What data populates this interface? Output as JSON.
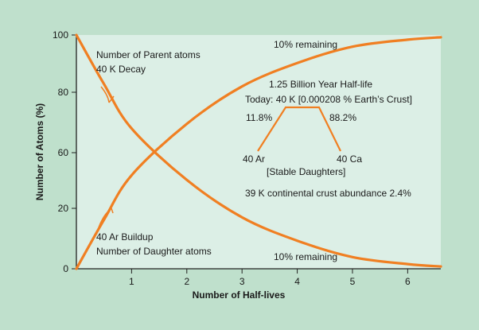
{
  "colors": {
    "background": "#bfe0cc",
    "plot_area": "#dcefe6",
    "curve": "#f07f22",
    "axis": "#222222"
  },
  "chart_data": {
    "type": "line",
    "title": "",
    "xlabel": "Number of Half-lives",
    "ylabel": "Number of Atoms (%)",
    "xlim": [
      0,
      6.6
    ],
    "x_ticks": [
      1,
      2,
      3,
      4,
      5,
      6
    ],
    "y_tick_labels": [
      "0",
      "20",
      "60",
      "80",
      "100"
    ],
    "grid": false,
    "series": [
      {
        "name": "Number of Parent atoms",
        "points_x": [
          0,
          0.5,
          1,
          2,
          3,
          4,
          5,
          6,
          6.6
        ],
        "points_y": [
          100,
          79,
          60,
          38,
          22,
          12,
          5,
          2,
          1
        ]
      },
      {
        "name": "Number of Daughter atoms",
        "points_x": [
          0,
          0.5,
          1,
          2,
          3,
          4,
          5,
          6,
          6.6
        ],
        "points_y": [
          0,
          21,
          40,
          62,
          78,
          88,
          95,
          98,
          99
        ]
      }
    ],
    "annotations": {
      "parent_line1": "Number of Parent atoms",
      "parent_line2": "40 K Decay",
      "daughter_line1": "40 Ar Buildup",
      "daughter_line2": "Number of Daughter atoms",
      "top_remaining": "10% remaining",
      "bottom_remaining": "10% remaining",
      "half_life": "1.25 Billion Year Half-life",
      "today": "Today: 40 K [0.000208 % Earth’s Crust]",
      "left_pct": "11.8%",
      "right_pct": "88.2%",
      "left_product": "40 Ar",
      "right_product": "40 Ca",
      "stable": "[Stable Daughters]",
      "abundance": "39 K continental crust abundance 2.4%"
    }
  }
}
